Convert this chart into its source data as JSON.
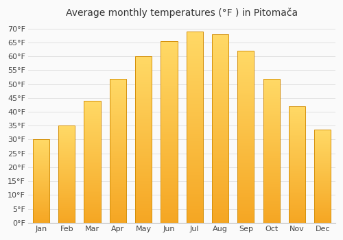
{
  "title": "Average monthly temperatures (°F ) in Pitomača",
  "months": [
    "Jan",
    "Feb",
    "Mar",
    "Apr",
    "May",
    "Jun",
    "Jul",
    "Aug",
    "Sep",
    "Oct",
    "Nov",
    "Dec"
  ],
  "values": [
    30,
    35,
    44,
    52,
    60,
    65.5,
    69,
    68,
    62,
    52,
    42,
    33.5
  ],
  "bar_color_bottom": "#F5A623",
  "bar_color_top": "#FFD966",
  "bar_edge_color": "#D4900A",
  "background_color": "#FAFAFA",
  "grid_color": "#DDDDDD",
  "text_color": "#444444",
  "ylim": [
    0,
    72
  ],
  "yticks": [
    0,
    5,
    10,
    15,
    20,
    25,
    30,
    35,
    40,
    45,
    50,
    55,
    60,
    65,
    70
  ],
  "title_fontsize": 10,
  "tick_fontsize": 8,
  "bar_width": 0.65
}
